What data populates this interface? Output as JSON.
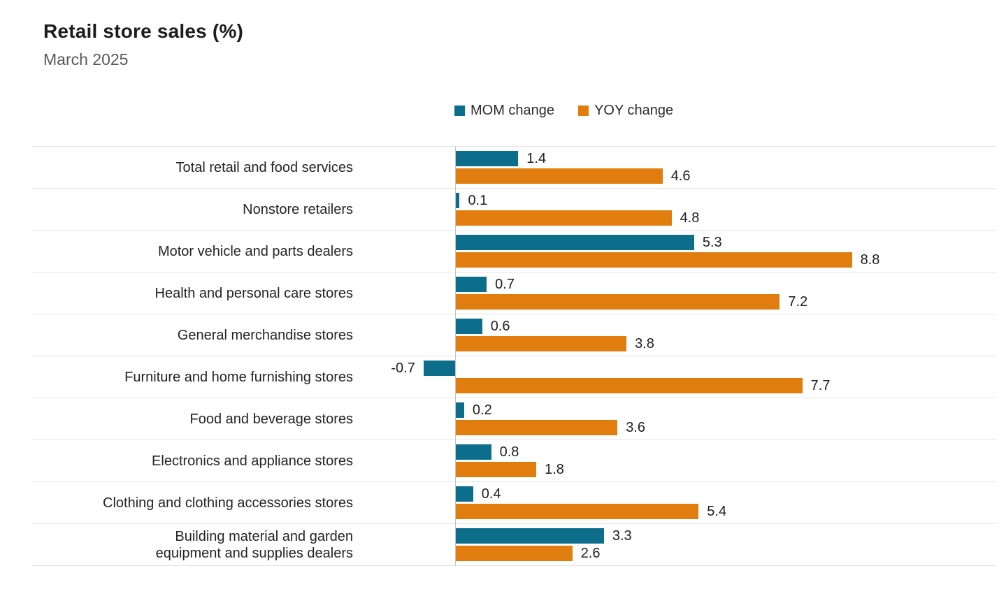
{
  "header": {
    "title": "Retail store sales (%)",
    "subtitle": "March 2025"
  },
  "legend": [
    {
      "label": "MOM change",
      "color": "#0D6E8C"
    },
    {
      "label": "YOY change",
      "color": "#E07D0E"
    }
  ],
  "chart_data": {
    "type": "bar",
    "orientation": "horizontal",
    "title": "Retail store sales (%)",
    "subtitle": "March 2025",
    "categories": [
      "Total retail and food services",
      "Nonstore retailers",
      "Motor vehicle and parts dealers",
      "Health and personal care stores",
      "General merchandise stores",
      "Furniture and home furnishing stores",
      "Food and beverage stores",
      "Electronics and appliance stores",
      "Clothing and clothing accessories stores",
      "Building material and garden\nequipment and supplies dealers"
    ],
    "series": [
      {
        "name": "MOM change",
        "color": "#0D6E8C",
        "values": [
          1.4,
          0.1,
          5.3,
          0.7,
          0.6,
          -0.7,
          0.2,
          0.8,
          0.4,
          3.3
        ]
      },
      {
        "name": "YOY change",
        "color": "#E07D0E",
        "values": [
          4.6,
          4.8,
          8.8,
          7.2,
          3.8,
          7.7,
          3.6,
          1.8,
          5.4,
          2.6
        ]
      }
    ],
    "value_labels": true,
    "xlim": [
      -1.4,
      12
    ],
    "grid": "row-separators",
    "legend_position": "top",
    "xlabel": "",
    "ylabel": ""
  }
}
